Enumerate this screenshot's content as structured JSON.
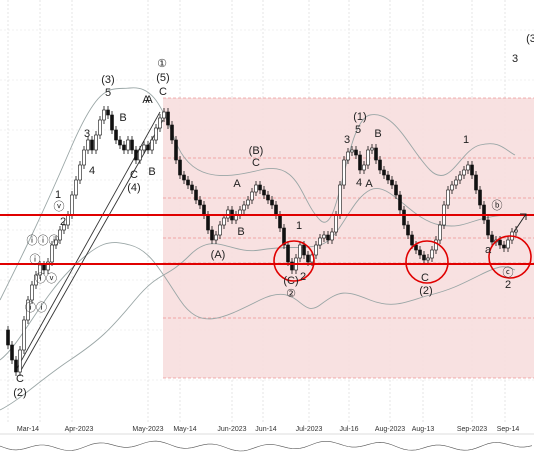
{
  "chart_data": {
    "type": "candlestick",
    "title": "",
    "xlabel": "",
    "ylabel": "",
    "grid": true,
    "x_ticks": [
      "Mar-14",
      "Apr-2023",
      "May-2023",
      "May-14",
      "Jun-2023",
      "Jun-14",
      "Jul-2023",
      "Jul-16",
      "Aug-2023",
      "Aug-13",
      "Sep-2023",
      "Sep-14"
    ],
    "colors": {
      "up_candle": "#ffffff",
      "down_candle": "#111111",
      "bollinger": "#9aa6a6",
      "resistance_line": "#e00000",
      "fib_zone": "#f5dcdc",
      "fib_levels": "#e05555",
      "highlight_circle": "#e00000",
      "trendline": "#333333"
    },
    "wave_labels": [
      "(3)",
      "5",
      "3",
      "4",
      "B",
      "A",
      "C",
      "(4)",
      "B",
      "(5)",
      "C",
      "A",
      "①",
      "1",
      "2",
      "ⓥ",
      "ⓘⓘⓘ",
      "ⓘ",
      "ⓘⓥ",
      "ⓘⓘ",
      "C",
      "(2)",
      "(B)",
      "C",
      "A",
      "B",
      "(A)",
      "1",
      "(C)",
      "2",
      "②",
      "(1)",
      "5",
      "3",
      "B",
      "4",
      "A",
      "C",
      "(2)",
      "1",
      "ⓑ",
      "a",
      "ⓒ",
      "2",
      "3",
      "(3"
    ],
    "annotations": [
      "3 circled support zones",
      "2 horizontal red resistance lines",
      "Fibonacci retracement zone"
    ]
  }
}
